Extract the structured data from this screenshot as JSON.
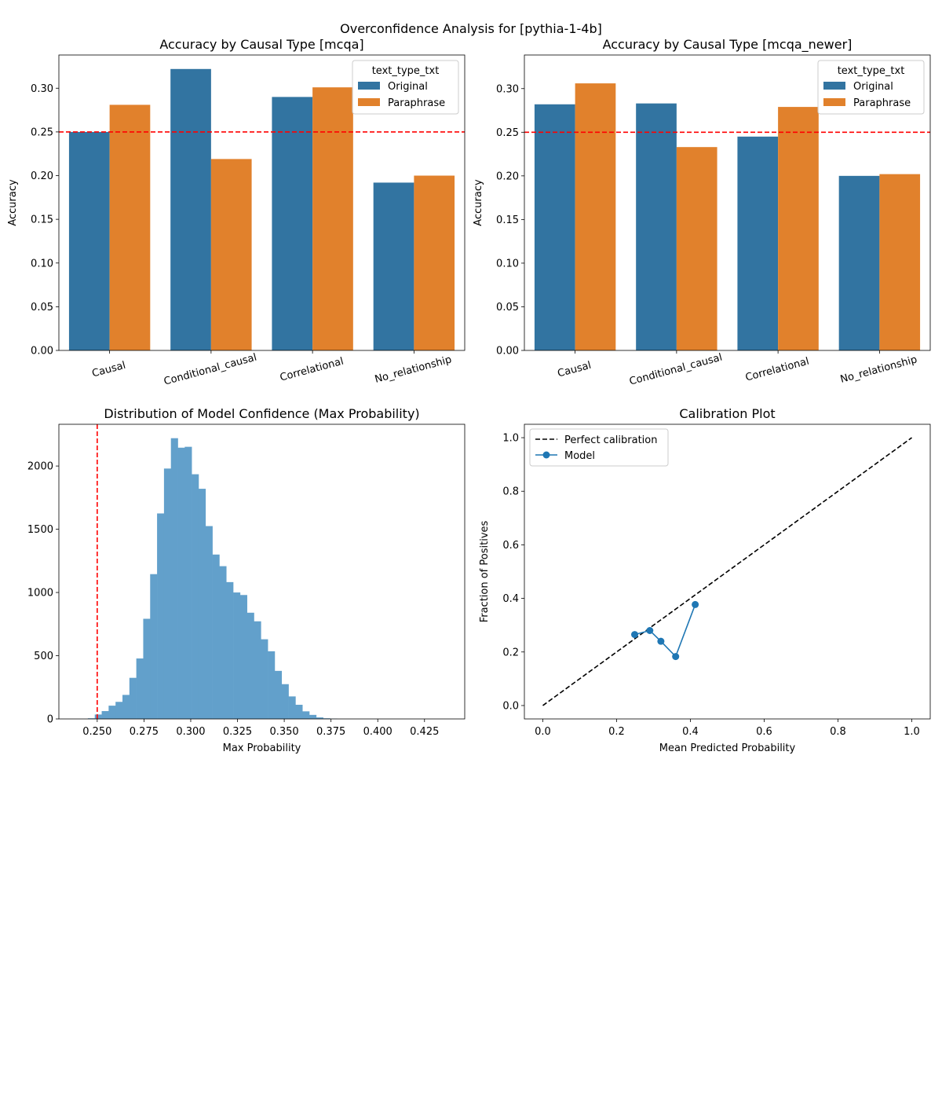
{
  "figure": {
    "suptitle": "Overconfidence Analysis for [pythia-1-4b]"
  },
  "colors": {
    "original": "#3274a1",
    "paraphrase": "#e1812c",
    "hist": "#62a0cb",
    "ref_line": "#ff0000",
    "calib_model": "#1f77b4",
    "perfect": "#000000"
  },
  "chart_data": [
    {
      "id": "acc-mcqa",
      "type": "bar",
      "title": "Accuracy by Causal Type [mcqa]",
      "xlabel": "",
      "ylabel": "Accuracy",
      "categories": [
        "Causal",
        "Conditional_causal",
        "Correlational",
        "No_relationship"
      ],
      "series": [
        {
          "name": "Original",
          "values": [
            0.25,
            0.322,
            0.29,
            0.192
          ]
        },
        {
          "name": "Paraphrase",
          "values": [
            0.281,
            0.219,
            0.301,
            0.2
          ]
        }
      ],
      "ylim": [
        0,
        0.338
      ],
      "yticks": [
        "0.00",
        "0.05",
        "0.10",
        "0.15",
        "0.20",
        "0.25",
        "0.30"
      ],
      "reference_line": 0.25,
      "legend": {
        "title": "text_type_txt",
        "placement": "top-right"
      }
    },
    {
      "id": "acc-mcqa-newer",
      "type": "bar",
      "title": "Accuracy by Causal Type [mcqa_newer]",
      "xlabel": "",
      "ylabel": "Accuracy",
      "categories": [
        "Causal",
        "Conditional_causal",
        "Correlational",
        "No_relationship"
      ],
      "series": [
        {
          "name": "Original",
          "values": [
            0.282,
            0.283,
            0.245,
            0.2
          ]
        },
        {
          "name": "Paraphrase",
          "values": [
            0.306,
            0.233,
            0.279,
            0.202
          ]
        }
      ],
      "ylim": [
        0,
        0.3385
      ],
      "yticks": [
        "0.00",
        "0.05",
        "0.10",
        "0.15",
        "0.20",
        "0.25",
        "0.30"
      ],
      "reference_line": 0.25,
      "legend": {
        "title": "text_type_txt",
        "placement": "top-right"
      }
    },
    {
      "id": "confidence-hist",
      "type": "histogram",
      "title": "Distribution of Model Confidence (Max Probability)",
      "xlabel": "Max Probability",
      "ylabel": "",
      "bin_start": 0.245,
      "bin_width": 0.0037,
      "counts": [
        5,
        35,
        62,
        105,
        135,
        190,
        325,
        478,
        792,
        1145,
        1625,
        1980,
        2220,
        2145,
        2152,
        1935,
        1820,
        1525,
        1300,
        1208,
        1082,
        1000,
        980,
        840,
        772,
        630,
        535,
        380,
        275,
        178,
        112,
        60,
        32,
        12,
        5,
        2
      ],
      "xlim": [
        0.2295,
        0.4465
      ],
      "ylim": [
        0,
        2330
      ],
      "xticks": [
        "0.250",
        "0.275",
        "0.300",
        "0.325",
        "0.350",
        "0.375",
        "0.400",
        "0.425"
      ],
      "yticks": [
        "0",
        "500",
        "1000",
        "1500",
        "2000"
      ],
      "reference_line": 0.25
    },
    {
      "id": "calibration",
      "type": "line",
      "title": "Calibration Plot",
      "xlabel": "Mean Predicted Probability",
      "ylabel": "Fraction of Positives",
      "series": [
        {
          "name": "Perfect calibration",
          "x": [
            0.0,
            1.0
          ],
          "y": [
            0.0,
            1.0
          ]
        },
        {
          "name": "Model",
          "x": [
            0.249,
            0.29,
            0.32,
            0.36,
            0.413
          ],
          "y": [
            0.265,
            0.28,
            0.24,
            0.183,
            0.377
          ]
        }
      ],
      "xlim": [
        -0.05,
        1.05
      ],
      "ylim": [
        -0.05,
        1.05
      ],
      "xticks": [
        "0.0",
        "0.2",
        "0.4",
        "0.6",
        "0.8",
        "1.0"
      ],
      "yticks": [
        "0.0",
        "0.2",
        "0.4",
        "0.6",
        "0.8",
        "1.0"
      ],
      "legend": {
        "placement": "top-left"
      }
    }
  ]
}
